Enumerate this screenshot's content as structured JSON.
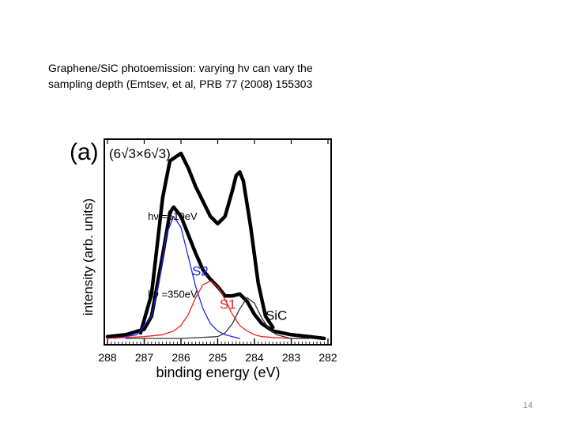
{
  "caption": {
    "line1": "Graphene/SiC  photoemission:  varying  hν can vary the",
    "line2": "sampling depth (Emtsev, et al, PRB 77 (2008) 155303"
  },
  "slide_number": "14",
  "chart_data": {
    "type": "line",
    "panel_label": "(a)",
    "title": "(6√3×6√3)",
    "xlabel": "binding energy (eV)",
    "ylabel": "intensity (arb. units)",
    "x_reversed": true,
    "xlim": [
      288,
      282
    ],
    "ylim": [
      0,
      1
    ],
    "x_ticks": [
      288,
      287,
      286,
      285,
      284,
      283,
      282
    ],
    "annotations": [
      {
        "text": "hν =510eV",
        "x": 286.9,
        "y": 0.64
      },
      {
        "text": "hν =350eV",
        "x": 286.9,
        "y": 0.22
      },
      {
        "text": "S2",
        "x": 285.7,
        "y": 0.34
      },
      {
        "text": "S1",
        "x": 284.95,
        "y": 0.16
      },
      {
        "text": "SiC",
        "x": 283.7,
        "y": 0.1
      }
    ],
    "series": [
      {
        "name": "hν =510eV spectrum",
        "color": "#000000",
        "style": "thick",
        "x": [
          287.1,
          286.8,
          286.5,
          286.3,
          286.0,
          285.8,
          285.6,
          285.4,
          285.2,
          285.0,
          284.8,
          284.6,
          284.5,
          284.4,
          284.3,
          284.1,
          283.9,
          283.7,
          283.5
        ],
        "y": [
          0.03,
          0.24,
          0.76,
          0.96,
          1.0,
          0.92,
          0.82,
          0.74,
          0.66,
          0.62,
          0.66,
          0.8,
          0.88,
          0.9,
          0.85,
          0.6,
          0.3,
          0.12,
          0.06
        ]
      },
      {
        "name": "hν =350eV spectrum",
        "color": "#000000",
        "style": "thick",
        "x": [
          288,
          287.5,
          287.0,
          286.8,
          286.5,
          286.3,
          286.2,
          286.0,
          285.8,
          285.6,
          285.4,
          285.2,
          285.0,
          284.8,
          284.6,
          284.4,
          284.2,
          284.0,
          283.8,
          283.5,
          283.0,
          282.5,
          282.1
        ],
        "y": [
          0.01,
          0.02,
          0.05,
          0.12,
          0.45,
          0.68,
          0.71,
          0.66,
          0.56,
          0.46,
          0.37,
          0.32,
          0.28,
          0.23,
          0.23,
          0.24,
          0.2,
          0.13,
          0.08,
          0.04,
          0.02,
          0.01,
          0.0
        ]
      },
      {
        "name": "S2",
        "color": "#2222ee",
        "style": "thin",
        "x": [
          287.8,
          287.2,
          286.8,
          286.6,
          286.4,
          286.2,
          286.0,
          285.8,
          285.6,
          285.4,
          285.2,
          285.0,
          284.8,
          284.6,
          284.4
        ],
        "y": [
          0.0,
          0.02,
          0.12,
          0.3,
          0.56,
          0.66,
          0.6,
          0.44,
          0.28,
          0.16,
          0.08,
          0.04,
          0.02,
          0.01,
          0.0
        ]
      },
      {
        "name": "S1",
        "color": "#ee2222",
        "style": "thin",
        "x": [
          288,
          287.0,
          286.5,
          286.2,
          286.0,
          285.8,
          285.6,
          285.4,
          285.2,
          285.0,
          284.8,
          284.6,
          284.4,
          284.2,
          284.0,
          283.8,
          283.5,
          283.0,
          282.5
        ],
        "y": [
          0.0,
          0.01,
          0.02,
          0.04,
          0.07,
          0.13,
          0.22,
          0.29,
          0.31,
          0.28,
          0.21,
          0.13,
          0.07,
          0.04,
          0.02,
          0.01,
          0.005,
          0.0,
          0.0
        ]
      },
      {
        "name": "SiC",
        "color": "#333333",
        "style": "thin",
        "x": [
          287.5,
          286.0,
          285.0,
          284.8,
          284.6,
          284.4,
          284.2,
          284.0,
          283.8,
          283.6,
          283.4,
          283.2,
          283.0,
          282.5
        ],
        "y": [
          0.0,
          0.0,
          0.01,
          0.03,
          0.08,
          0.16,
          0.22,
          0.19,
          0.11,
          0.05,
          0.02,
          0.01,
          0.0,
          0.0
        ]
      }
    ]
  }
}
